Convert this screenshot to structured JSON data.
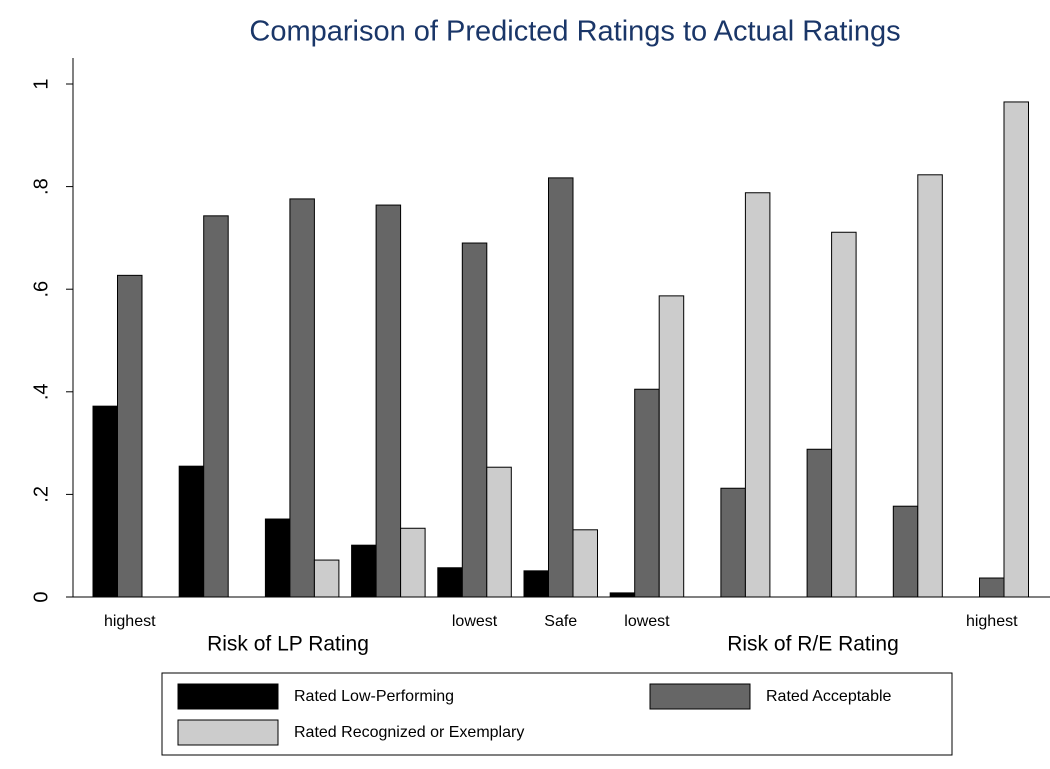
{
  "chart_data": {
    "type": "bar",
    "title": "Comparison of Predicted Ratings to Actual Ratings",
    "categories": [
      "highest",
      null,
      null,
      null,
      "lowest",
      "Safe",
      "lowest",
      null,
      null,
      null,
      "highest"
    ],
    "annotations": [
      "Risk of LP Rating",
      "Risk of R/E Rating"
    ],
    "series": [
      {
        "name": "Rated Low-Performing",
        "color": "#000000",
        "values": [
          0.372,
          0.255,
          0.152,
          0.101,
          0.057,
          0.051,
          0.008,
          0,
          0,
          0,
          0
        ]
      },
      {
        "name": "Rated Acceptable",
        "color": "#666666",
        "values": [
          0.627,
          0.743,
          0.776,
          0.764,
          0.69,
          0.817,
          0.405,
          0.212,
          0.288,
          0.177,
          0.037
        ]
      },
      {
        "name": "Rated Recognized or Exemplary",
        "color": "#cccccc",
        "values": [
          0,
          0,
          0.072,
          0.134,
          0.253,
          0.131,
          0.587,
          0.788,
          0.711,
          0.823,
          0.965
        ]
      }
    ],
    "ylim": [
      0,
      1.05
    ],
    "yticks": [
      0,
      {
        "value": 0.2,
        "label": ".2"
      },
      {
        "value": 0.4,
        "label": ".4"
      },
      {
        "value": 0.6,
        "label": ".6"
      },
      {
        "value": 0.8,
        "label": ".8"
      },
      1
    ],
    "legend": "bottom"
  }
}
